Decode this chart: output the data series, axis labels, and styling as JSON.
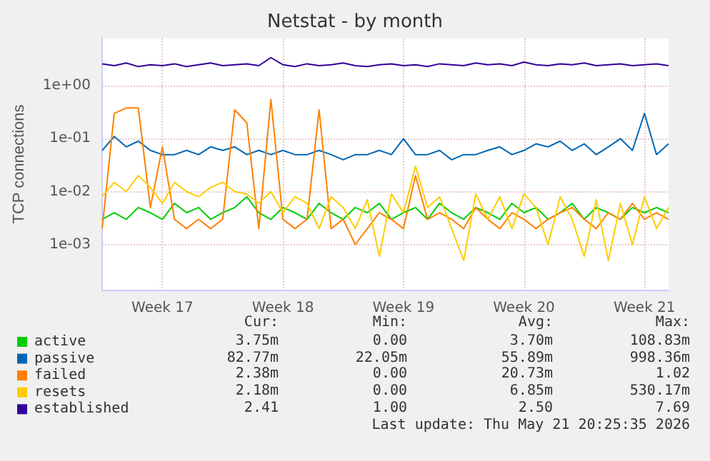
{
  "chart_data": {
    "type": "line",
    "title": "Netstat - by month",
    "ylabel": "TCP connections",
    "categories": [
      null,
      null,
      null,
      null,
      null,
      "Week 17",
      null,
      null,
      null,
      null,
      null,
      null,
      null,
      null,
      null,
      "Week 18",
      null,
      null,
      null,
      null,
      null,
      null,
      null,
      null,
      null,
      "Week 19",
      null,
      null,
      null,
      null,
      null,
      null,
      null,
      null,
      null,
      "Week 20",
      null,
      null,
      null,
      null,
      null,
      null,
      null,
      null,
      null,
      "Week 21",
      null,
      null
    ],
    "series": [
      {
        "name": "active",
        "color": "#00cc00",
        "values": [
          0.003,
          0.004,
          0.003,
          0.005,
          0.004,
          0.003,
          0.006,
          0.004,
          0.005,
          0.003,
          0.004,
          0.005,
          0.008,
          0.004,
          0.003,
          0.005,
          0.004,
          0.003,
          0.006,
          0.004,
          0.003,
          0.005,
          0.004,
          0.006,
          0.003,
          0.004,
          0.005,
          0.003,
          0.006,
          0.004,
          0.003,
          0.005,
          0.004,
          0.003,
          0.006,
          0.004,
          0.005,
          0.003,
          0.004,
          0.006,
          0.003,
          0.005,
          0.004,
          0.003,
          0.005,
          0.004,
          0.005,
          0.004
        ]
      },
      {
        "name": "passive",
        "color": "#0066b3",
        "values": [
          0.06,
          0.11,
          0.07,
          0.09,
          0.06,
          0.05,
          0.05,
          0.06,
          0.05,
          0.07,
          0.06,
          0.07,
          0.05,
          0.06,
          0.05,
          0.06,
          0.05,
          0.05,
          0.06,
          0.05,
          0.04,
          0.05,
          0.05,
          0.06,
          0.05,
          0.1,
          0.05,
          0.05,
          0.06,
          0.04,
          0.05,
          0.05,
          0.06,
          0.07,
          0.05,
          0.06,
          0.08,
          0.07,
          0.09,
          0.06,
          0.08,
          0.05,
          0.07,
          0.1,
          0.06,
          0.3,
          0.05,
          0.08
        ]
      },
      {
        "name": "failed",
        "color": "#ff8000",
        "values": [
          0.002,
          0.3,
          0.38,
          0.38,
          0.005,
          0.07,
          0.003,
          0.002,
          0.003,
          0.002,
          0.003,
          0.35,
          0.2,
          0.002,
          0.55,
          0.003,
          0.002,
          0.003,
          0.35,
          0.002,
          0.003,
          0.001,
          0.002,
          0.004,
          0.003,
          0.002,
          0.02,
          0.003,
          0.004,
          0.003,
          0.002,
          0.005,
          0.003,
          0.002,
          0.004,
          0.003,
          0.002,
          0.003,
          0.004,
          0.005,
          0.003,
          0.002,
          0.004,
          0.003,
          0.006,
          0.003,
          0.004,
          0.003
        ]
      },
      {
        "name": "resets",
        "color": "#ffcc00",
        "values": [
          0.008,
          0.015,
          0.01,
          0.02,
          0.012,
          0.006,
          0.015,
          0.01,
          0.008,
          0.012,
          0.015,
          0.01,
          0.009,
          0.006,
          0.01,
          0.004,
          0.008,
          0.006,
          0.002,
          0.008,
          0.005,
          0.002,
          0.007,
          0.0006,
          0.009,
          0.004,
          0.03,
          0.005,
          0.008,
          0.002,
          0.0005,
          0.009,
          0.003,
          0.008,
          0.002,
          0.009,
          0.005,
          0.001,
          0.008,
          0.003,
          0.0006,
          0.007,
          0.0005,
          0.006,
          0.001,
          0.008,
          0.002,
          0.005
        ]
      },
      {
        "name": "established",
        "color": "#330099",
        "values": [
          2.6,
          2.4,
          2.7,
          2.3,
          2.5,
          2.4,
          2.6,
          2.3,
          2.5,
          2.7,
          2.4,
          2.5,
          2.6,
          2.4,
          3.4,
          2.5,
          2.3,
          2.6,
          2.4,
          2.5,
          2.7,
          2.4,
          2.3,
          2.5,
          2.6,
          2.4,
          2.5,
          2.3,
          2.6,
          2.5,
          2.4,
          2.7,
          2.5,
          2.6,
          2.4,
          2.8,
          2.5,
          2.4,
          2.6,
          2.5,
          2.7,
          2.4,
          2.5,
          2.6,
          2.4,
          2.5,
          2.6,
          2.4
        ]
      }
    ],
    "ylim": [
      0.00014,
      7.8
    ],
    "yticks": [
      {
        "value": 0.001,
        "label": "1e-03"
      },
      {
        "value": 0.01,
        "label": "1e-02"
      },
      {
        "value": 0.1,
        "label": "1e-01"
      },
      {
        "value": 1,
        "label": "1e+00"
      }
    ],
    "log": "y",
    "grid": true,
    "legend": "bottom left",
    "marker": "none",
    "line_style": "solid",
    "annotations": [
      "Cur:",
      "Min:",
      "Avg:",
      "Max:",
      "3.75m",
      "0.00",
      "3.70m",
      "108.83m",
      "82.77m",
      "22.05m",
      "55.89m",
      "998.36m",
      "2.38m",
      "0.00",
      "20.73m",
      "1.02",
      "2.18m",
      "0.00",
      "6.85m",
      "530.17m",
      "2.41",
      "1.00",
      "2.50",
      "7.69",
      "Last update: Thu May 21 20:25:35 2026"
    ]
  }
}
